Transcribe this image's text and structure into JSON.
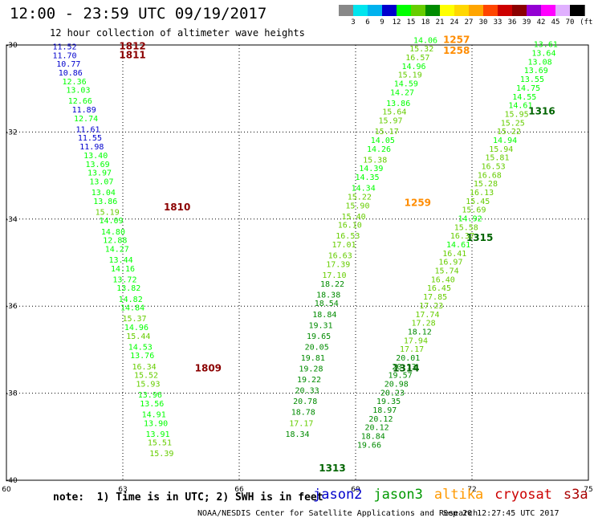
{
  "title": "12:00 - 23:59 UTC 09/19/2017",
  "subtitle": "12 hour collection of altimeter wave heights",
  "note": "note:  1) Time is in UTC; 2) SWH is in feet",
  "footer_left": "NOAA/NESDIS Center for Satellite Applications and Research",
  "footer_right": "Sep 20 12:27:45 UTC 2017",
  "satellites": [
    {
      "name": "jason2",
      "color": "#0000cc"
    },
    {
      "name": "jason3",
      "color": "#009900"
    },
    {
      "name": "altika",
      "color": "#ff9900"
    },
    {
      "name": "cryosat",
      "color": "#cc0000"
    },
    {
      "name": "s3a",
      "color": "#aa0000"
    }
  ],
  "colorbar": {
    "unit": "(ft)",
    "ticks": [
      "3",
      "6",
      "9",
      "12",
      "15",
      "18",
      "21",
      "24",
      "27",
      "30",
      "33",
      "36",
      "39",
      "42",
      "45",
      "70"
    ],
    "colors": [
      "#888888",
      "#00e5ee",
      "#00b2ee",
      "#0000cd",
      "#00ff00",
      "#66cd00",
      "#008b00",
      "#ffff00",
      "#ffd700",
      "#ffa500",
      "#ff4500",
      "#cd0000",
      "#8b0000",
      "#9400d3",
      "#ff00ff",
      "#e0b0ff",
      "#000000"
    ]
  },
  "chart_data": {
    "type": "scatter",
    "x_ticks": [
      "60",
      "63",
      "66",
      "69",
      "72",
      "75"
    ],
    "y_ticks": [
      "-30",
      "-32",
      "-34",
      "-36",
      "-38",
      "-40"
    ],
    "xlim": [
      60,
      75
    ],
    "ylim": [
      -40,
      -30
    ],
    "pass_labels": [
      {
        "text": "1812",
        "x": 63.25,
        "y": -30.1,
        "color": "#8b0000"
      },
      {
        "text": "1811",
        "x": 63.25,
        "y": -30.3,
        "color": "#8b0000"
      },
      {
        "text": "1810",
        "x": 64.4,
        "y": -33.8,
        "color": "#8b0000"
      },
      {
        "text": "1809",
        "x": 65.2,
        "y": -37.5,
        "color": "#8b0000"
      },
      {
        "text": "1257",
        "x": 71.6,
        "y": -29.95,
        "color": "#ff8c00"
      },
      {
        "text": "1258",
        "x": 71.6,
        "y": -30.2,
        "color": "#ff8c00"
      },
      {
        "text": "1259",
        "x": 70.6,
        "y": -33.7,
        "color": "#ff8c00"
      },
      {
        "text": "1316",
        "x": 73.8,
        "y": -31.6,
        "color": "#006400"
      },
      {
        "text": "1315",
        "x": 72.2,
        "y": -34.5,
        "color": "#006400"
      },
      {
        "text": "1314",
        "x": 70.3,
        "y": -37.5,
        "color": "#006400"
      },
      {
        "text": "1313",
        "x": 68.4,
        "y": -39.8,
        "color": "#006400"
      }
    ],
    "series": [
      {
        "name": "cryosat",
        "points": [
          {
            "x": 61.5,
            "y": -30.1,
            "v": "11.52"
          },
          {
            "x": 61.5,
            "y": -30.3,
            "v": "11.70"
          },
          {
            "x": 61.6,
            "y": -30.5,
            "v": "10.77"
          },
          {
            "x": 61.65,
            "y": -30.7,
            "v": "10.86"
          },
          {
            "x": 61.75,
            "y": -30.9,
            "v": "12.36"
          },
          {
            "x": 61.85,
            "y": -31.1,
            "v": "13.03"
          },
          {
            "x": 61.9,
            "y": -31.35,
            "v": "12.66"
          },
          {
            "x": 62.0,
            "y": -31.55,
            "v": "11.89"
          },
          {
            "x": 62.05,
            "y": -31.75,
            "v": "12.74"
          },
          {
            "x": 62.1,
            "y": -32.0,
            "v": "11.61"
          },
          {
            "x": 62.15,
            "y": -32.2,
            "v": "11.55"
          },
          {
            "x": 62.2,
            "y": -32.4,
            "v": "11.98"
          },
          {
            "x": 62.3,
            "y": -32.6,
            "v": "13.40"
          },
          {
            "x": 62.35,
            "y": -32.8,
            "v": "13.69"
          },
          {
            "x": 62.4,
            "y": -33.0,
            "v": "13.97"
          },
          {
            "x": 62.45,
            "y": -33.2,
            "v": "13.07"
          },
          {
            "x": 62.5,
            "y": -33.45,
            "v": "13.04"
          },
          {
            "x": 62.55,
            "y": -33.65,
            "v": "13.86"
          },
          {
            "x": 62.6,
            "y": -33.9,
            "v": "15.19"
          },
          {
            "x": 62.7,
            "y": -34.1,
            "v": "14.09"
          },
          {
            "x": 62.75,
            "y": -34.35,
            "v": "14.80"
          },
          {
            "x": 62.8,
            "y": -34.55,
            "v": "12.88"
          },
          {
            "x": 62.85,
            "y": -34.75,
            "v": "14.27"
          },
          {
            "x": 62.95,
            "y": -35.0,
            "v": "13.44"
          },
          {
            "x": 63.0,
            "y": -35.2,
            "v": "14.16"
          },
          {
            "x": 63.05,
            "y": -35.45,
            "v": "13.72"
          },
          {
            "x": 63.15,
            "y": -35.65,
            "v": "13.82"
          },
          {
            "x": 63.2,
            "y": -35.9,
            "v": "14.82"
          },
          {
            "x": 63.25,
            "y": -36.1,
            "v": "14.84"
          },
          {
            "x": 63.3,
            "y": -36.35,
            "v": "15.37"
          },
          {
            "x": 63.35,
            "y": -36.55,
            "v": "14.96"
          },
          {
            "x": 63.4,
            "y": -36.75,
            "v": "15.44"
          },
          {
            "x": 63.45,
            "y": -37.0,
            "v": "14.53"
          },
          {
            "x": 63.5,
            "y": -37.2,
            "v": "13.76"
          },
          {
            "x": 63.55,
            "y": -37.45,
            "v": "16.34"
          },
          {
            "x": 63.6,
            "y": -37.65,
            "v": "15.52"
          },
          {
            "x": 63.65,
            "y": -37.85,
            "v": "15.93"
          },
          {
            "x": 63.7,
            "y": -38.1,
            "v": "13.96"
          },
          {
            "x": 63.75,
            "y": -38.3,
            "v": "13.56"
          },
          {
            "x": 63.8,
            "y": -38.55,
            "v": "14.91"
          },
          {
            "x": 63.85,
            "y": -38.75,
            "v": "13.90"
          },
          {
            "x": 63.9,
            "y": -39.0,
            "v": "13.91"
          },
          {
            "x": 63.95,
            "y": -39.2,
            "v": "15.51"
          },
          {
            "x": 64.0,
            "y": -39.45,
            "v": "15.39"
          }
        ]
      },
      {
        "name": "jason3",
        "points": [
          {
            "x": 70.8,
            "y": -29.95,
            "v": "14.06"
          },
          {
            "x": 70.7,
            "y": -30.15,
            "v": "15.32"
          },
          {
            "x": 70.6,
            "y": -30.35,
            "v": "16.57"
          },
          {
            "x": 70.5,
            "y": -30.55,
            "v": "14.96"
          },
          {
            "x": 70.4,
            "y": -30.75,
            "v": "15.19"
          },
          {
            "x": 70.3,
            "y": -30.95,
            "v": "14.59"
          },
          {
            "x": 70.2,
            "y": -31.15,
            "v": "14.27"
          },
          {
            "x": 70.1,
            "y": -31.4,
            "v": "13.86"
          },
          {
            "x": 70.0,
            "y": -31.6,
            "v": "15.64"
          },
          {
            "x": 69.9,
            "y": -31.8,
            "v": "15.97"
          },
          {
            "x": 69.8,
            "y": -32.05,
            "v": "15.17"
          },
          {
            "x": 69.7,
            "y": -32.25,
            "v": "14.05"
          },
          {
            "x": 69.6,
            "y": -32.45,
            "v": "14.26"
          },
          {
            "x": 69.5,
            "y": -32.7,
            "v": "15.38"
          },
          {
            "x": 69.4,
            "y": -32.9,
            "v": "14.39"
          },
          {
            "x": 69.3,
            "y": -33.1,
            "v": "14.35"
          },
          {
            "x": 69.2,
            "y": -33.35,
            "v": "14.34"
          },
          {
            "x": 69.1,
            "y": -33.55,
            "v": "15.22"
          },
          {
            "x": 69.05,
            "y": -33.75,
            "v": "15.90"
          },
          {
            "x": 68.95,
            "y": -34.0,
            "v": "15.40"
          },
          {
            "x": 68.85,
            "y": -34.2,
            "v": "16.10"
          },
          {
            "x": 68.8,
            "y": -34.45,
            "v": "16.53"
          },
          {
            "x": 68.7,
            "y": -34.65,
            "v": "17.01"
          },
          {
            "x": 68.6,
            "y": -34.9,
            "v": "16.63"
          },
          {
            "x": 68.55,
            "y": -35.1,
            "v": "17.39"
          },
          {
            "x": 68.45,
            "y": -35.35,
            "v": "17.10"
          },
          {
            "x": 68.4,
            "y": -35.55,
            "v": "18.22"
          },
          {
            "x": 68.3,
            "y": -35.8,
            "v": "18.38"
          },
          {
            "x": 68.25,
            "y": -36.0,
            "v": "18.54"
          },
          {
            "x": 68.2,
            "y": -36.25,
            "v": "18.84"
          },
          {
            "x": 68.1,
            "y": -36.5,
            "v": "19.31"
          },
          {
            "x": 68.05,
            "y": -36.75,
            "v": "19.65"
          },
          {
            "x": 68.0,
            "y": -37.0,
            "v": "20.05"
          },
          {
            "x": 67.9,
            "y": -37.25,
            "v": "19.81"
          },
          {
            "x": 67.85,
            "y": -37.5,
            "v": "19.28"
          },
          {
            "x": 67.8,
            "y": -37.75,
            "v": "19.22"
          },
          {
            "x": 67.75,
            "y": -38.0,
            "v": "20.33"
          },
          {
            "x": 67.7,
            "y": -38.25,
            "v": "20.78"
          },
          {
            "x": 67.65,
            "y": -38.5,
            "v": "18.78"
          },
          {
            "x": 67.6,
            "y": -38.75,
            "v": "17.17"
          },
          {
            "x": 67.5,
            "y": -39.0,
            "v": "18.34"
          },
          {
            "x": 73.9,
            "y": -30.05,
            "v": "13.61"
          },
          {
            "x": 73.85,
            "y": -30.25,
            "v": "13.64"
          },
          {
            "x": 73.75,
            "y": -30.45,
            "v": "13.08"
          },
          {
            "x": 73.65,
            "y": -30.65,
            "v": "13.69"
          },
          {
            "x": 73.55,
            "y": -30.85,
            "v": "13.55"
          },
          {
            "x": 73.45,
            "y": -31.05,
            "v": "14.75"
          },
          {
            "x": 73.35,
            "y": -31.25,
            "v": "14.55"
          },
          {
            "x": 73.25,
            "y": -31.45,
            "v": "14.61"
          },
          {
            "x": 73.15,
            "y": -31.65,
            "v": "15.95"
          },
          {
            "x": 73.05,
            "y": -31.85,
            "v": "15.25"
          },
          {
            "x": 72.95,
            "y": -32.05,
            "v": "15.22"
          },
          {
            "x": 72.85,
            "y": -32.25,
            "v": "14.94"
          },
          {
            "x": 72.75,
            "y": -32.45,
            "v": "15.94"
          },
          {
            "x": 72.65,
            "y": -32.65,
            "v": "15.81"
          },
          {
            "x": 72.55,
            "y": -32.85,
            "v": "16.53"
          },
          {
            "x": 72.45,
            "y": -33.05,
            "v": "16.68"
          },
          {
            "x": 72.35,
            "y": -33.25,
            "v": "15.28"
          },
          {
            "x": 72.25,
            "y": -33.45,
            "v": "16.13"
          },
          {
            "x": 72.15,
            "y": -33.65,
            "v": "15.45"
          },
          {
            "x": 72.05,
            "y": -33.85,
            "v": "15.69"
          },
          {
            "x": 71.95,
            "y": -34.05,
            "v": "14.92"
          },
          {
            "x": 71.85,
            "y": -34.25,
            "v": "15.58"
          },
          {
            "x": 71.75,
            "y": -34.45,
            "v": "16.37"
          },
          {
            "x": 71.65,
            "y": -34.65,
            "v": "14.61"
          },
          {
            "x": 71.55,
            "y": -34.85,
            "v": "16.41"
          },
          {
            "x": 71.45,
            "y": -35.05,
            "v": "16.97"
          },
          {
            "x": 71.35,
            "y": -35.25,
            "v": "15.74"
          },
          {
            "x": 71.25,
            "y": -35.45,
            "v": "16.40"
          },
          {
            "x": 71.15,
            "y": -35.65,
            "v": "16.45"
          },
          {
            "x": 71.05,
            "y": -35.85,
            "v": "17.85"
          },
          {
            "x": 70.95,
            "y": -36.05,
            "v": "17.23"
          },
          {
            "x": 70.85,
            "y": -36.25,
            "v": "17.74"
          },
          {
            "x": 70.75,
            "y": -36.45,
            "v": "17.28"
          },
          {
            "x": 70.65,
            "y": -36.65,
            "v": "18.12"
          },
          {
            "x": 70.55,
            "y": -36.85,
            "v": "17.94"
          },
          {
            "x": 70.45,
            "y": -37.05,
            "v": "17.17"
          },
          {
            "x": 70.35,
            "y": -37.25,
            "v": "20.01"
          },
          {
            "x": 70.25,
            "y": -37.45,
            "v": "20.13"
          },
          {
            "x": 70.15,
            "y": -37.65,
            "v": "19.57"
          },
          {
            "x": 70.05,
            "y": -37.85,
            "v": "20.98"
          },
          {
            "x": 69.95,
            "y": -38.05,
            "v": "20.23"
          },
          {
            "x": 69.85,
            "y": -38.25,
            "v": "19.35"
          },
          {
            "x": 69.75,
            "y": -38.45,
            "v": "18.97"
          },
          {
            "x": 69.65,
            "y": -38.65,
            "v": "20.12"
          },
          {
            "x": 69.55,
            "y": -38.85,
            "v": "20.12"
          },
          {
            "x": 69.45,
            "y": -39.05,
            "v": "18.84"
          },
          {
            "x": 69.35,
            "y": -39.25,
            "v": "19.66"
          }
        ]
      }
    ]
  }
}
